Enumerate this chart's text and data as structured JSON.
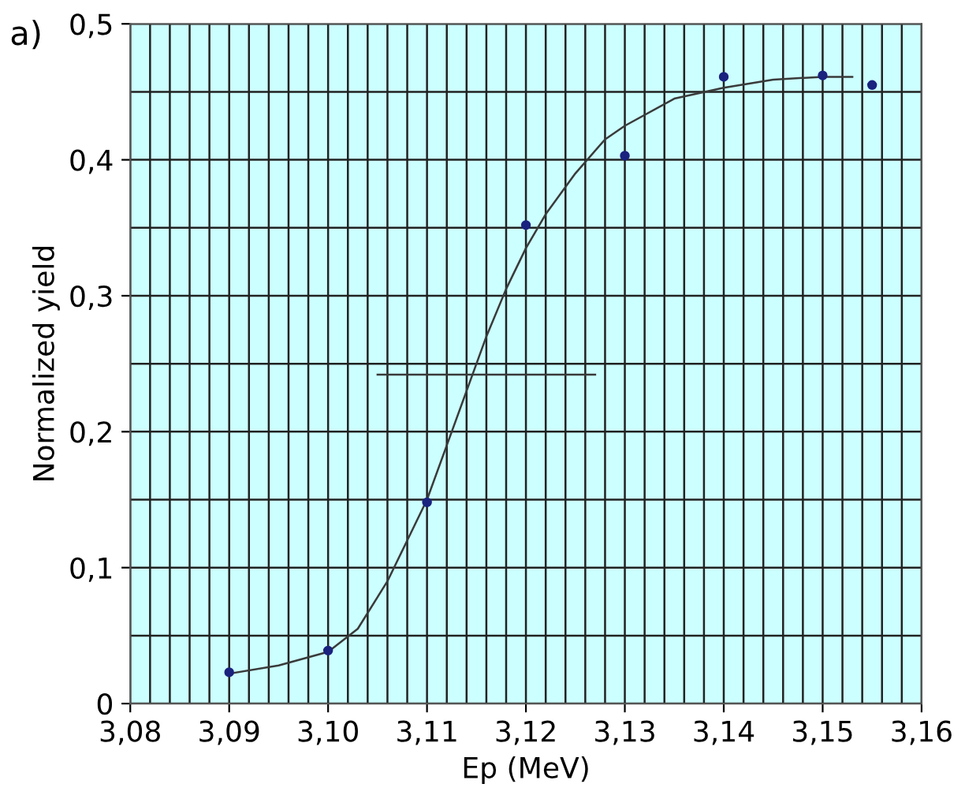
{
  "chart_data": {
    "type": "scatter",
    "xlabel": "Ep (MeV)",
    "ylabel": "Normalized yield",
    "annotations": [
      "a)"
    ],
    "xlim": [
      3.08,
      3.16
    ],
    "ylim": [
      0,
      0.5
    ],
    "xticks": [
      {
        "value": 3.08,
        "label": "3,08"
      },
      {
        "value": 3.09,
        "label": "3,09"
      },
      {
        "value": 3.1,
        "label": "3,10"
      },
      {
        "value": 3.11,
        "label": "3,11"
      },
      {
        "value": 3.12,
        "label": "3,12"
      },
      {
        "value": 3.13,
        "label": "3,13"
      },
      {
        "value": 3.14,
        "label": "3,14"
      },
      {
        "value": 3.15,
        "label": "3,15"
      },
      {
        "value": 3.16,
        "label": "3,16"
      }
    ],
    "yticks": [
      0,
      {
        "value": 0.1,
        "label": "0,1"
      },
      {
        "value": 0.2,
        "label": "0,2"
      },
      {
        "value": 0.3,
        "label": "0,3"
      },
      {
        "value": 0.4,
        "label": "0,4"
      },
      {
        "value": 0.5,
        "label": "0,5"
      }
    ],
    "grid": true,
    "series": [
      {
        "type": "line",
        "color": "#3a3a3a",
        "marker": "none",
        "line_style": "solid",
        "x": [
          3.09,
          3.095,
          3.1,
          3.103,
          3.106,
          3.108,
          3.11,
          3.112,
          3.114,
          3.116,
          3.118,
          3.12,
          3.122,
          3.125,
          3.128,
          3.13,
          3.135,
          3.14,
          3.145,
          3.15,
          3.153
        ],
        "values": [
          0.022,
          0.028,
          0.038,
          0.055,
          0.09,
          0.12,
          0.15,
          0.19,
          0.23,
          0.27,
          0.305,
          0.335,
          0.36,
          0.39,
          0.415,
          0.425,
          0.445,
          0.453,
          0.459,
          0.461,
          0.461
        ]
      },
      {
        "type": "line",
        "color": "#3a3a3a",
        "marker": "none",
        "line_style": "solid",
        "x": [
          3.105,
          3.127
        ],
        "values": [
          0.242,
          0.242
        ]
      },
      {
        "color": "#1a237e",
        "marker": "circle",
        "x": [
          3.09,
          3.1,
          3.11,
          3.12,
          3.13,
          3.14,
          3.15,
          3.155
        ],
        "values": [
          0.023,
          0.039,
          0.148,
          0.352,
          0.403,
          0.461,
          0.462,
          0.455
        ]
      }
    ]
  }
}
